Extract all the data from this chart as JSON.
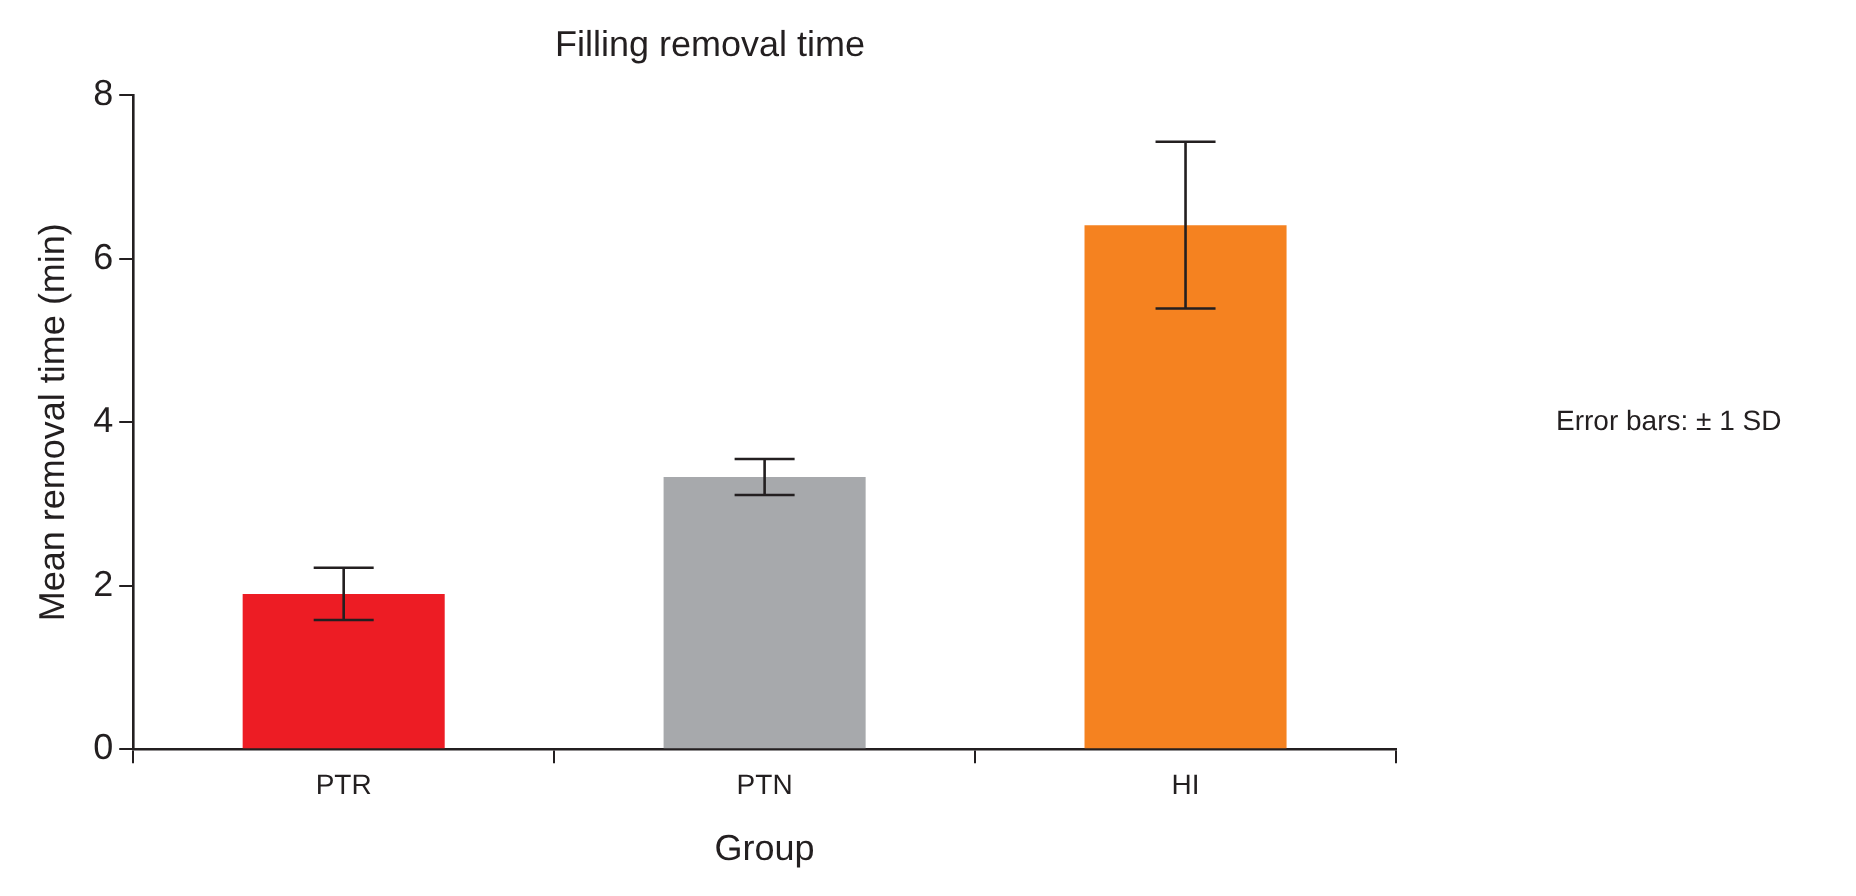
{
  "chart_data": {
    "type": "bar",
    "title": "Filling removal time",
    "xlabel": "Group",
    "ylabel": "Mean removal time (min)",
    "categories": [
      "PTR",
      "PTN",
      "HI"
    ],
    "values": [
      1.9,
      3.33,
      6.41
    ],
    "colors": [
      "#ed1c24",
      "#a7a9ac",
      "#f58220"
    ],
    "errors": [
      0.32,
      0.22,
      1.02
    ],
    "ylim": [
      0,
      8
    ],
    "yticks": [
      0,
      2,
      4,
      6,
      8
    ],
    "grid": false,
    "legend": false,
    "annotations": [
      "Error bars: ± 1 SD"
    ]
  }
}
